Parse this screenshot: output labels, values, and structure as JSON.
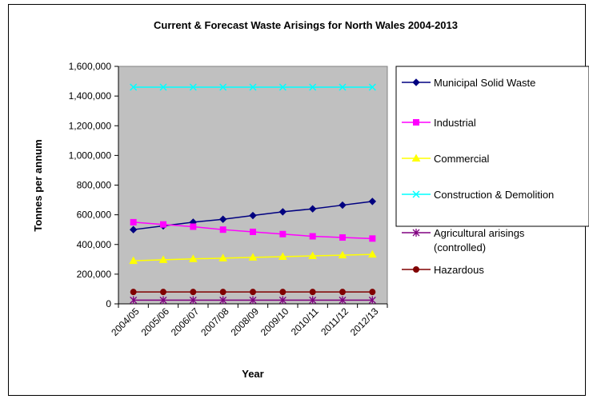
{
  "chart_data": {
    "type": "line",
    "title": "Current & Forecast Waste Arisings for North Wales 2004-2013",
    "xlabel": "Year",
    "ylabel": "Tonnes per annum",
    "categories": [
      "2004/05",
      "2005/06",
      "2006/07",
      "2007/08",
      "2008/09",
      "2009/10",
      "2010/11",
      "2011/12",
      "2012/13"
    ],
    "ylim": [
      0,
      1600000
    ],
    "yticks": [
      0,
      200000,
      400000,
      600000,
      800000,
      1000000,
      1200000,
      1400000,
      1600000
    ],
    "ytick_labels": [
      "0",
      "200,000",
      "400,000",
      "600,000",
      "800,000",
      "1,000,000",
      "1,200,000",
      "1,400,000",
      "1,600,000"
    ],
    "plot_background": "#c0c0c0",
    "grid": false,
    "legend_position": "right",
    "series": [
      {
        "name": "Municipal Solid Waste",
        "color": "#000080",
        "marker": "diamond",
        "values": [
          500000,
          525000,
          550000,
          570000,
          595000,
          620000,
          640000,
          665000,
          690000
        ]
      },
      {
        "name": "Industrial",
        "color": "#ff00ff",
        "marker": "square",
        "values": [
          550000,
          535000,
          520000,
          500000,
          485000,
          470000,
          455000,
          447000,
          440000
        ]
      },
      {
        "name": "Commercial",
        "color": "#ffff00",
        "marker": "triangle",
        "values": [
          290000,
          297000,
          303000,
          308000,
          313000,
          318000,
          323000,
          328000,
          333000
        ]
      },
      {
        "name": "Construction & Demolition",
        "color": "#00ffff",
        "marker": "x",
        "values": [
          1460000,
          1460000,
          1460000,
          1460000,
          1460000,
          1460000,
          1460000,
          1460000,
          1460000
        ]
      },
      {
        "name": "Agricultural arisings (controlled)",
        "legend_lines": [
          "Agricultural arisings",
          "(controlled)"
        ],
        "color": "#800080",
        "marker": "star",
        "values": [
          25000,
          25000,
          25000,
          25000,
          25000,
          25000,
          25000,
          25000,
          25000
        ]
      },
      {
        "name": "Hazardous",
        "color": "#800000",
        "marker": "circle",
        "values": [
          80000,
          80000,
          80000,
          80000,
          80000,
          80000,
          80000,
          80000,
          80000
        ]
      }
    ]
  }
}
